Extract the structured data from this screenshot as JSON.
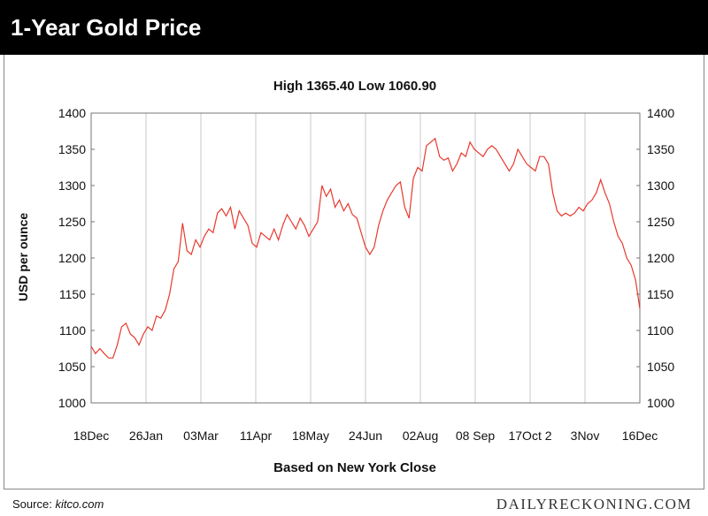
{
  "header": {
    "title": "1-Year Gold Price"
  },
  "footer": {
    "source_label": "Source:",
    "source_site": "kitco.com",
    "brand": "DAILYRECKONING.COM"
  },
  "colors": {
    "line": "#e8392e",
    "header_bg": "#000000",
    "grid": "#bbbbbb"
  },
  "chart_data": {
    "type": "line",
    "title": "High 1365.40 Low 1060.90",
    "xlabel": "Based on New York Close",
    "ylabel": "USD per ounce",
    "ylim": [
      1000,
      1400
    ],
    "yticks": [
      1000,
      1050,
      1100,
      1150,
      1200,
      1250,
      1300,
      1350,
      1400
    ],
    "y_axis_both_sides": true,
    "grid": "vertical",
    "categories": [
      "18Dec",
      "26Jan",
      "03Mar",
      "11Apr",
      "18May",
      "24Jun",
      "02Aug",
      "08 Sep",
      "17Oct 2",
      "3Nov",
      "16Dec"
    ],
    "x_domain": [
      0,
      252
    ],
    "series": [
      {
        "x": [
          0,
          2,
          4,
          6,
          8,
          10,
          12,
          14,
          16,
          18,
          20,
          22,
          24,
          26,
          28,
          30,
          32,
          34,
          36,
          38,
          40,
          42,
          44,
          46,
          48,
          50,
          52,
          54,
          56,
          58,
          60,
          62,
          64,
          66,
          68,
          70,
          72,
          74,
          76,
          78,
          80,
          82,
          84,
          86,
          88,
          90,
          92,
          94,
          96,
          98,
          100,
          102,
          104,
          106,
          108,
          110,
          112,
          114,
          116,
          118,
          120,
          122,
          124,
          126,
          128,
          130,
          132,
          134,
          136,
          138,
          140,
          142,
          144,
          146,
          148,
          150,
          152,
          154,
          156,
          158,
          160,
          162,
          164,
          166,
          168,
          170,
          172,
          174,
          176,
          178,
          180,
          182,
          184,
          186,
          188,
          190,
          192,
          194,
          196,
          198,
          200,
          202,
          204,
          206,
          208,
          210,
          212,
          214,
          216,
          218,
          220,
          222,
          224,
          226,
          228,
          230,
          232,
          234,
          236,
          238,
          240,
          242,
          244,
          246,
          248,
          250,
          252
        ],
        "values": [
          1078,
          1068,
          1075,
          1068,
          1062,
          1062,
          1080,
          1105,
          1110,
          1095,
          1090,
          1080,
          1095,
          1105,
          1100,
          1120,
          1117,
          1128,
          1150,
          1185,
          1195,
          1248,
          1210,
          1205,
          1225,
          1215,
          1230,
          1240,
          1235,
          1262,
          1268,
          1258,
          1270,
          1240,
          1265,
          1255,
          1245,
          1220,
          1215,
          1235,
          1230,
          1225,
          1240,
          1225,
          1245,
          1260,
          1250,
          1240,
          1255,
          1245,
          1230,
          1240,
          1250,
          1300,
          1285,
          1295,
          1270,
          1280,
          1265,
          1275,
          1260,
          1255,
          1235,
          1215,
          1205,
          1215,
          1245,
          1265,
          1280,
          1290,
          1300,
          1305,
          1270,
          1255,
          1310,
          1325,
          1320,
          1355,
          1360,
          1365,
          1340,
          1335,
          1338,
          1320,
          1330,
          1345,
          1340,
          1360,
          1350,
          1345,
          1340,
          1350,
          1355,
          1350,
          1340,
          1330,
          1320,
          1330,
          1350,
          1340,
          1330,
          1325,
          1320,
          1340,
          1340,
          1330,
          1290,
          1265,
          1258,
          1262,
          1258,
          1262,
          1270,
          1265,
          1275,
          1280,
          1290,
          1308,
          1290,
          1275,
          1250,
          1230,
          1220,
          1200,
          1190,
          1170,
          1130
        ]
      }
    ]
  }
}
